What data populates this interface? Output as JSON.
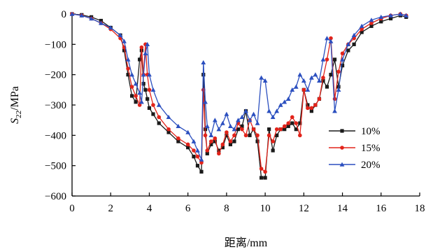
{
  "chart_data": {
    "type": "line",
    "title": "",
    "xlabel": "距离/mm",
    "ylabel": {
      "base": "S",
      "sub": "22",
      "unit": "/MPa"
    },
    "xlim": [
      0,
      18
    ],
    "ylim": [
      -600,
      0
    ],
    "xticks": [
      0,
      2,
      4,
      6,
      8,
      10,
      12,
      14,
      16,
      18
    ],
    "yticks": [
      0,
      -100,
      -200,
      -300,
      -400,
      -500,
      -600
    ],
    "xtick_labels": [
      "0",
      "2",
      "4",
      "6",
      "8",
      "10",
      "12",
      "14",
      "16",
      "18"
    ],
    "ytick_labels": [
      "0",
      "−100",
      "−200",
      "−300",
      "−400",
      "−500",
      "−600"
    ],
    "grid": false,
    "legend_position": "right",
    "series": [
      {
        "name": "10%",
        "color": "#1a1a1a",
        "marker": "square",
        "x": [
          0,
          0.5,
          1.0,
          1.5,
          2.0,
          2.5,
          2.7,
          2.9,
          3.1,
          3.3,
          3.5,
          3.6,
          3.7,
          3.8,
          3.9,
          4.0,
          4.2,
          4.5,
          5.0,
          5.5,
          6.0,
          6.3,
          6.5,
          6.7,
          6.8,
          6.9,
          7.0,
          7.2,
          7.4,
          7.6,
          7.8,
          8.0,
          8.2,
          8.4,
          8.6,
          8.8,
          9.0,
          9.2,
          9.4,
          9.6,
          9.8,
          10.0,
          10.2,
          10.4,
          10.6,
          10.8,
          11.0,
          11.2,
          11.4,
          11.6,
          11.8,
          12.0,
          12.2,
          12.4,
          12.6,
          12.8,
          13.0,
          13.2,
          13.4,
          13.6,
          13.8,
          14.0,
          14.3,
          14.6,
          15.0,
          15.5,
          16.0,
          16.5,
          17.0,
          17.3
        ],
        "y": [
          0,
          -3,
          -10,
          -22,
          -45,
          -70,
          -120,
          -200,
          -270,
          -290,
          -150,
          -120,
          -230,
          -250,
          -280,
          -310,
          -330,
          -360,
          -390,
          -420,
          -440,
          -470,
          -500,
          -520,
          -200,
          -380,
          -460,
          -430,
          -420,
          -450,
          -440,
          -400,
          -430,
          -420,
          -380,
          -370,
          -320,
          -400,
          -380,
          -420,
          -540,
          -540,
          -380,
          -450,
          -400,
          -380,
          -380,
          -370,
          -360,
          -380,
          -360,
          -250,
          -300,
          -320,
          -300,
          -280,
          -220,
          -240,
          -200,
          -150,
          -240,
          -170,
          -120,
          -100,
          -60,
          -40,
          -25,
          -15,
          -5,
          -10
        ]
      },
      {
        "name": "15%",
        "color": "#e2231a",
        "marker": "circle",
        "x": [
          0,
          0.5,
          1.0,
          1.5,
          2.0,
          2.5,
          2.7,
          2.9,
          3.1,
          3.3,
          3.5,
          3.6,
          3.7,
          3.8,
          3.9,
          4.0,
          4.2,
          4.5,
          5.0,
          5.5,
          6.0,
          6.3,
          6.5,
          6.7,
          6.8,
          6.9,
          7.0,
          7.2,
          7.4,
          7.6,
          7.8,
          8.0,
          8.2,
          8.4,
          8.6,
          8.8,
          9.0,
          9.2,
          9.4,
          9.6,
          9.8,
          10.0,
          10.2,
          10.4,
          10.6,
          10.8,
          11.0,
          11.2,
          11.4,
          11.6,
          11.8,
          12.0,
          12.2,
          12.4,
          12.6,
          12.8,
          13.0,
          13.2,
          13.4,
          13.6,
          13.8,
          14.0,
          14.3,
          14.6,
          15.0,
          15.5,
          16.0,
          16.5,
          17.0,
          17.3
        ],
        "y": [
          0,
          -5,
          -15,
          -30,
          -50,
          -80,
          -110,
          -180,
          -240,
          -270,
          -300,
          -110,
          -200,
          -100,
          -200,
          -250,
          -300,
          -340,
          -380,
          -410,
          -430,
          -450,
          -470,
          -490,
          -250,
          -400,
          -450,
          -420,
          -410,
          -460,
          -430,
          -390,
          -420,
          -400,
          -360,
          -380,
          -400,
          -350,
          -380,
          -400,
          -510,
          -520,
          -400,
          -420,
          -380,
          -380,
          -370,
          -360,
          -340,
          -360,
          -400,
          -250,
          -310,
          -310,
          -300,
          -280,
          -210,
          -150,
          -80,
          -280,
          -190,
          -130,
          -100,
          -80,
          -50,
          -30,
          -15,
          -5,
          0,
          -5
        ]
      },
      {
        "name": "20%",
        "color": "#2b4fbf",
        "marker": "triangle",
        "x": [
          0,
          0.5,
          1.0,
          1.5,
          2.0,
          2.5,
          2.7,
          2.9,
          3.1,
          3.3,
          3.5,
          3.6,
          3.7,
          3.8,
          3.9,
          4.0,
          4.2,
          4.5,
          5.0,
          5.5,
          6.0,
          6.3,
          6.5,
          6.7,
          6.8,
          6.9,
          7.0,
          7.2,
          7.4,
          7.6,
          7.8,
          8.0,
          8.2,
          8.4,
          8.6,
          8.8,
          9.0,
          9.2,
          9.4,
          9.6,
          9.8,
          10.0,
          10.2,
          10.4,
          10.6,
          10.8,
          11.0,
          11.2,
          11.4,
          11.6,
          11.8,
          12.0,
          12.2,
          12.4,
          12.6,
          12.8,
          13.0,
          13.2,
          13.4,
          13.6,
          13.8,
          14.0,
          14.3,
          14.6,
          15.0,
          15.5,
          16.0,
          16.5,
          17.0,
          17.3
        ],
        "y": [
          0,
          -5,
          -15,
          -30,
          -45,
          -70,
          -90,
          -150,
          -200,
          -230,
          -260,
          -290,
          -200,
          -130,
          -100,
          -200,
          -250,
          -300,
          -340,
          -370,
          -390,
          -420,
          -450,
          -480,
          -160,
          -290,
          -370,
          -400,
          -350,
          -380,
          -360,
          -330,
          -370,
          -380,
          -350,
          -340,
          -320,
          -350,
          -330,
          -360,
          -210,
          -220,
          -320,
          -340,
          -320,
          -300,
          -290,
          -280,
          -250,
          -240,
          -200,
          -220,
          -250,
          -210,
          -200,
          -220,
          -150,
          -80,
          -90,
          -320,
          -250,
          -150,
          -100,
          -70,
          -40,
          -20,
          -10,
          -5,
          0,
          -5
        ]
      }
    ]
  }
}
